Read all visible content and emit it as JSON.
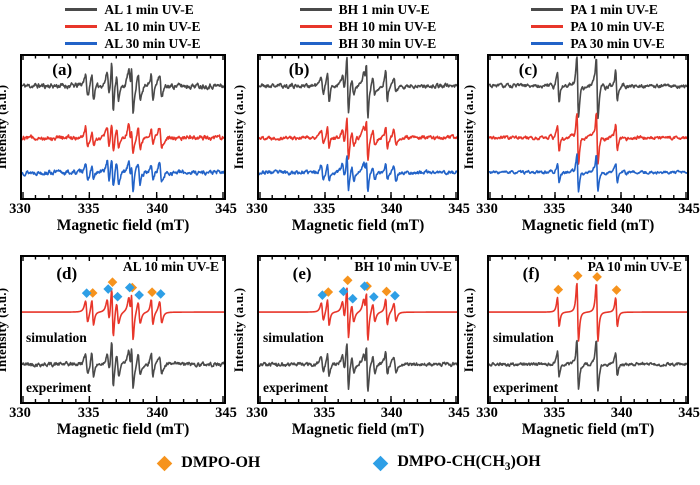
{
  "figure": {
    "bg": "#ffffff",
    "colors": {
      "gray": "#4a4a4a",
      "red": "#e8362a",
      "blue": "#2263c8",
      "orange": "#f6931d",
      "lightblue": "#2e9fe6",
      "axis": "#000000"
    },
    "legend_bottom": [
      {
        "marker": "diamond",
        "marker_color": "#f6931d",
        "label": "DMPO-OH"
      },
      {
        "marker": "diamond",
        "marker_color": "#2e9fe6",
        "label": "DMPO-CH(CH3)OH",
        "label_parts": {
          "pre": "DMPO-CH(CH",
          "sub": "3",
          "post": ")OH"
        }
      }
    ]
  },
  "chart_data": {
    "type": "line",
    "xlabel": "Magnetic field (mT)",
    "ylabel": "Intensity (a.u.)",
    "xlim": [
      330,
      345
    ],
    "xticks": [
      330,
      335,
      340,
      345
    ],
    "x_minor_step_mT": 1,
    "y_axis_note": "arbitrary units; traces vertically offset, EPR first-derivative lineshapes",
    "species": {
      "DMPO-OH": {
        "positions_mT": [
          335.25,
          336.72,
          338.19,
          339.66
        ],
        "relative_amplitudes": [
          1,
          2,
          2,
          1
        ],
        "linewidth_mT": 0.11,
        "marker": "diamond",
        "marker_color": "#f6931d"
      },
      "DMPO-CH(CH3)OH": {
        "positions_mT": [
          334.8,
          336.4,
          337.1,
          338.0,
          338.7,
          340.3
        ],
        "relative_amplitudes": [
          1,
          1,
          1,
          1,
          1,
          1
        ],
        "linewidth_mT": 0.14,
        "marker": "diamond",
        "marker_color": "#2e9fe6"
      }
    },
    "panels": [
      {
        "id": "a",
        "letter": "(a)",
        "sample": "AL",
        "legend": [
          {
            "label": "AL 1 min UV-E",
            "color": "gray"
          },
          {
            "label": "AL 10 min UV-E",
            "color": "red"
          },
          {
            "label": "AL 30 min UV-E",
            "color": "blue"
          }
        ],
        "traces": [
          {
            "name": "AL 1 min UV-E",
            "color": "gray",
            "baseline": 0.21,
            "amplitude": 26,
            "dmpo_oh": 1.0,
            "dmpo_r": 0.55,
            "noise": 0.08,
            "seed": 11
          },
          {
            "name": "AL 10 min UV-E",
            "color": "red",
            "baseline": 0.575,
            "amplitude": 20,
            "dmpo_oh": 0.72,
            "dmpo_r": 0.62,
            "noise": 0.09,
            "seed": 12
          },
          {
            "name": "AL 30 min UV-E",
            "color": "blue",
            "baseline": 0.82,
            "amplitude": 20,
            "dmpo_oh": 0.72,
            "dmpo_r": 0.62,
            "noise": 0.09,
            "seed": 13
          }
        ]
      },
      {
        "id": "b",
        "letter": "(b)",
        "sample": "BH",
        "legend": [
          {
            "label": "BH 1 min UV-E",
            "color": "gray"
          },
          {
            "label": "BH 10 min UV-E",
            "color": "red"
          },
          {
            "label": "BH 30 min UV-E",
            "color": "blue"
          }
        ],
        "traces": [
          {
            "name": "BH 1 min UV-E",
            "color": "gray",
            "baseline": 0.21,
            "amplitude": 29,
            "dmpo_oh": 1.0,
            "dmpo_r": 0.32,
            "noise": 0.06,
            "seed": 21
          },
          {
            "name": "BH 10 min UV-E",
            "color": "red",
            "baseline": 0.575,
            "amplitude": 25,
            "dmpo_oh": 0.85,
            "dmpo_r": 0.35,
            "noise": 0.06,
            "seed": 22
          },
          {
            "name": "BH 30 min UV-E",
            "color": "blue",
            "baseline": 0.82,
            "amplitude": 22,
            "dmpo_oh": 0.8,
            "dmpo_r": 0.4,
            "noise": 0.07,
            "seed": 23
          }
        ]
      },
      {
        "id": "c",
        "letter": "(c)",
        "sample": "PA",
        "legend": [
          {
            "label": "PA 1 min UV-E",
            "color": "gray"
          },
          {
            "label": "PA 10 min UV-E",
            "color": "red"
          },
          {
            "label": "PA 30 min UV-E",
            "color": "blue"
          }
        ],
        "traces": [
          {
            "name": "PA 1 min UV-E",
            "color": "gray",
            "baseline": 0.21,
            "amplitude": 31,
            "dmpo_oh": 1.0,
            "dmpo_r": 0.07,
            "noise": 0.05,
            "seed": 31
          },
          {
            "name": "PA 10 min UV-E",
            "color": "red",
            "baseline": 0.575,
            "amplitude": 27,
            "dmpo_oh": 0.95,
            "dmpo_r": 0.07,
            "noise": 0.05,
            "seed": 32
          },
          {
            "name": "PA 30 min UV-E",
            "color": "blue",
            "baseline": 0.82,
            "amplitude": 22,
            "dmpo_oh": 0.85,
            "dmpo_r": 0.07,
            "noise": 0.05,
            "seed": 33
          }
        ]
      },
      {
        "id": "d",
        "letter": "(d)",
        "sample": "AL",
        "title": "AL 10 min UV-E",
        "trace_labels": {
          "sim": "simulation",
          "exp": "experiment"
        },
        "traces": [
          {
            "name": "simulation",
            "color": "red",
            "baseline": 0.38,
            "amplitude": 25,
            "dmpo_oh": 1.0,
            "dmpo_r": 0.5,
            "noise": 0,
            "seed": 41,
            "markers": [
              "DMPO-OH",
              "DMPO-CH(CH3)OH"
            ]
          },
          {
            "name": "experiment",
            "color": "gray",
            "baseline": 0.74,
            "amplitude": 24,
            "dmpo_oh": 0.95,
            "dmpo_r": 0.48,
            "noise": 0.07,
            "seed": 42
          }
        ]
      },
      {
        "id": "e",
        "letter": "(e)",
        "sample": "BH",
        "title": "BH 10 min UV-E",
        "trace_labels": {
          "sim": "simulation",
          "exp": "experiment"
        },
        "traces": [
          {
            "name": "simulation",
            "color": "red",
            "baseline": 0.38,
            "amplitude": 26,
            "dmpo_oh": 1.0,
            "dmpo_r": 0.4,
            "noise": 0,
            "seed": 51,
            "markers": [
              "DMPO-OH",
              "DMPO-CH(CH3)OH"
            ]
          },
          {
            "name": "experiment",
            "color": "gray",
            "baseline": 0.74,
            "amplitude": 25,
            "dmpo_oh": 0.95,
            "dmpo_r": 0.38,
            "noise": 0.06,
            "seed": 52
          }
        ]
      },
      {
        "id": "f",
        "letter": "(f)",
        "sample": "PA",
        "title": "PA 10 min UV-E",
        "trace_labels": {
          "sim": "simulation",
          "exp": "experiment"
        },
        "traces": [
          {
            "name": "simulation",
            "color": "red",
            "baseline": 0.38,
            "amplitude": 29,
            "dmpo_oh": 1.0,
            "dmpo_r": 0,
            "noise": 0,
            "seed": 61,
            "markers": [
              "DMPO-OH"
            ]
          },
          {
            "name": "experiment",
            "color": "gray",
            "baseline": 0.74,
            "amplitude": 26,
            "dmpo_oh": 0.95,
            "dmpo_r": 0,
            "noise": 0.05,
            "seed": 62
          }
        ]
      }
    ]
  }
}
